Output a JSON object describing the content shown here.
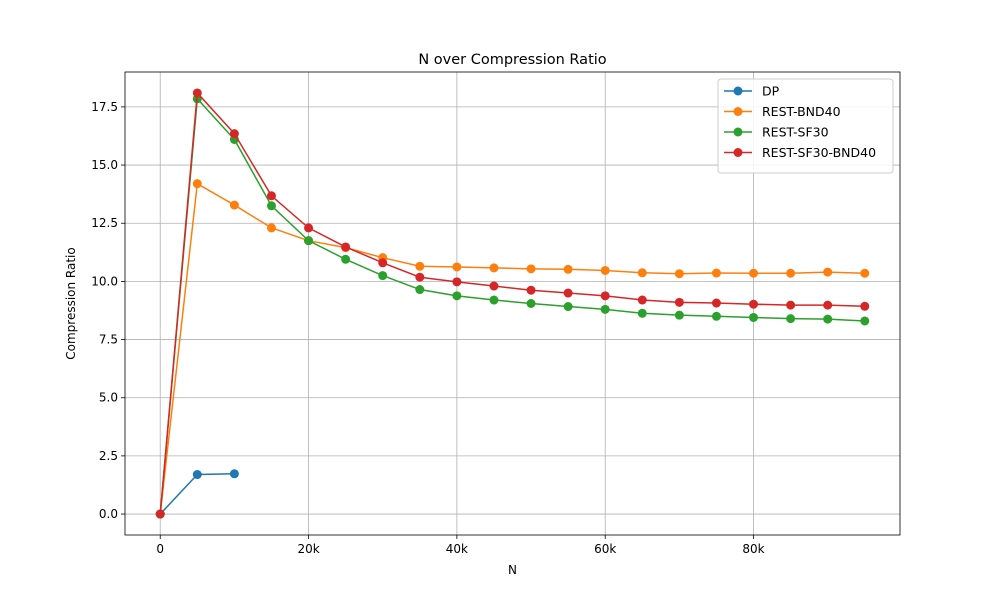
{
  "chart_data": {
    "type": "line",
    "title": "N over Compression Ratio",
    "xlabel": "N",
    "ylabel": "Compression Ratio",
    "xlim": [
      -4750,
      99750
    ],
    "ylim": [
      -0.9,
      19.0
    ],
    "x_ticks": [
      0,
      20000,
      40000,
      60000,
      80000
    ],
    "x_tick_labels": [
      "0",
      "20k",
      "40k",
      "60k",
      "80k"
    ],
    "y_ticks": [
      0.0,
      2.5,
      5.0,
      7.5,
      10.0,
      12.5,
      15.0,
      17.5
    ],
    "y_tick_labels": [
      "0.0",
      "2.5",
      "5.0",
      "7.5",
      "10.0",
      "12.5",
      "15.0",
      "17.5"
    ],
    "grid": true,
    "legend_position": "top-right",
    "series": [
      {
        "name": "DP",
        "color": "#1f77b4",
        "x": [
          0,
          5000,
          10000
        ],
        "y": [
          0.0,
          1.7,
          1.73
        ]
      },
      {
        "name": "REST-BND40",
        "color": "#ff7f0e",
        "x": [
          0,
          5000,
          10000,
          15000,
          20000,
          25000,
          30000,
          35000,
          40000,
          45000,
          50000,
          55000,
          60000,
          65000,
          70000,
          75000,
          80000,
          85000,
          90000,
          95000
        ],
        "y": [
          0.0,
          14.2,
          13.28,
          12.3,
          11.75,
          11.45,
          11.02,
          10.65,
          10.62,
          10.58,
          10.54,
          10.52,
          10.47,
          10.37,
          10.33,
          10.36,
          10.35,
          10.35,
          10.4,
          10.35
        ]
      },
      {
        "name": "REST-SF30",
        "color": "#2ca02c",
        "x": [
          0,
          5000,
          10000,
          15000,
          20000,
          25000,
          30000,
          35000,
          40000,
          45000,
          50000,
          55000,
          60000,
          65000,
          70000,
          75000,
          80000,
          85000,
          90000,
          95000
        ],
        "y": [
          0.0,
          17.85,
          16.1,
          13.25,
          11.75,
          10.95,
          10.25,
          9.65,
          9.38,
          9.2,
          9.05,
          8.92,
          8.8,
          8.63,
          8.55,
          8.5,
          8.45,
          8.4,
          8.38,
          8.3
        ]
      },
      {
        "name": "REST-SF30-BND40",
        "color": "#d62728",
        "x": [
          0,
          5000,
          10000,
          15000,
          20000,
          25000,
          30000,
          35000,
          40000,
          45000,
          50000,
          55000,
          60000,
          65000,
          70000,
          75000,
          80000,
          85000,
          90000,
          95000
        ],
        "y": [
          0.0,
          18.1,
          16.35,
          13.68,
          12.3,
          11.48,
          10.8,
          10.18,
          9.98,
          9.8,
          9.62,
          9.5,
          9.38,
          9.2,
          9.1,
          9.07,
          9.02,
          8.98,
          8.98,
          8.93
        ]
      }
    ]
  }
}
